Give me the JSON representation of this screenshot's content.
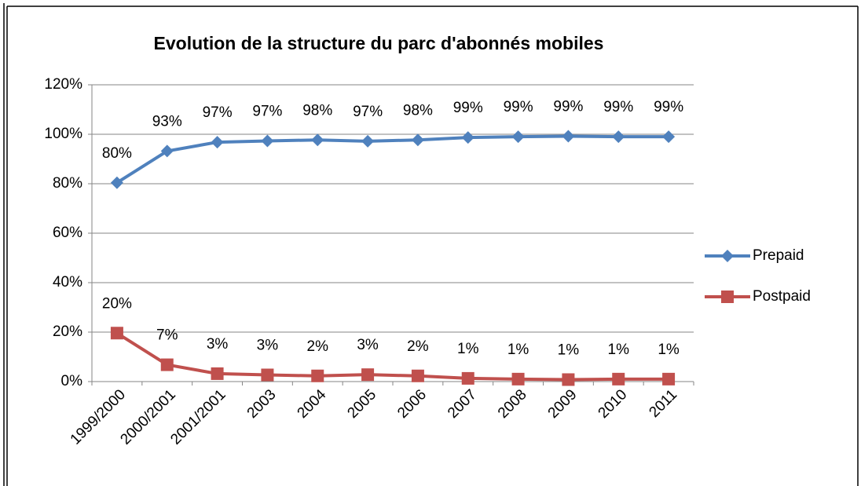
{
  "chart_data": {
    "type": "line",
    "title": "Evolution de la structure du parc d'abonnés mobiles",
    "categories": [
      "1999/2000",
      "2000/2001",
      "2001/2001",
      "2003",
      "2004",
      "2005",
      "2006",
      "2007",
      "2008",
      "2009",
      "2010",
      "2011"
    ],
    "series": [
      {
        "name": "Prepaid",
        "color": "#4f81bd",
        "marker": "diamond",
        "values": [
          80.4,
          93.2,
          96.8,
          97.3,
          97.7,
          97.2,
          97.7,
          98.7,
          99.0,
          99.2,
          99.0,
          99.0
        ],
        "value_labels": [
          "80%",
          "93%",
          "97%",
          "97%",
          "98%",
          "97%",
          "98%",
          "99%",
          "99%",
          "99%",
          "99%",
          "99%"
        ]
      },
      {
        "name": "Postpaid",
        "color": "#c0504d",
        "marker": "square",
        "values": [
          19.6,
          6.8,
          3.2,
          2.7,
          2.3,
          2.8,
          2.3,
          1.3,
          1.0,
          0.8,
          1.0,
          1.0
        ],
        "value_labels": [
          "20%",
          "7%",
          "3%",
          "3%",
          "2%",
          "3%",
          "2%",
          "1%",
          "1%",
          "1%",
          "1%",
          "1%"
        ]
      }
    ],
    "ylim": [
      0,
      120
    ],
    "yticks": [
      {
        "value": 0,
        "label": "0%"
      },
      {
        "value": 20,
        "label": "20%"
      },
      {
        "value": 40,
        "label": "40%"
      },
      {
        "value": 60,
        "label": "60%"
      },
      {
        "value": 80,
        "label": "80%"
      },
      {
        "value": 100,
        "label": "100%"
      },
      {
        "value": 120,
        "label": "120%"
      }
    ],
    "grid": true,
    "legend": "right"
  }
}
